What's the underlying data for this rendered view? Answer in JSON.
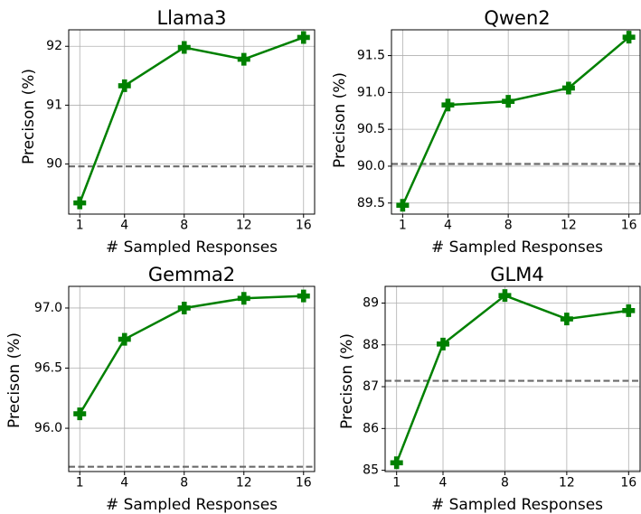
{
  "chart_data": [
    {
      "type": "line",
      "title": "Llama3",
      "xlabel": "# Sampled Responses",
      "ylabel": "Precison (%)",
      "x_tick_labels": [
        "1",
        "4",
        "8",
        "12",
        "16"
      ],
      "y_tick_labels": [
        "90",
        "91",
        "92"
      ],
      "y_ticks": [
        90,
        91,
        92
      ],
      "ylim": [
        89.15,
        92.28
      ],
      "grid": true,
      "line_color": "#008000",
      "baseline_color": "#6b6b6b",
      "series": [
        {
          "x": [
            1,
            4,
            8,
            12,
            16
          ],
          "values": [
            89.34,
            91.33,
            91.98,
            91.78,
            92.15
          ]
        }
      ],
      "baseline": 89.96
    },
    {
      "type": "line",
      "title": "Qwen2",
      "xlabel": "# Sampled Responses",
      "ylabel": "Precison (%)",
      "x_tick_labels": [
        "1",
        "4",
        "8",
        "12",
        "16"
      ],
      "y_tick_labels": [
        "89.5",
        "90.0",
        "90.5",
        "91.0",
        "91.5"
      ],
      "y_ticks": [
        89.5,
        90.0,
        90.5,
        91.0,
        91.5
      ],
      "ylim": [
        89.35,
        91.85
      ],
      "grid": true,
      "line_color": "#008000",
      "baseline_color": "#6b6b6b",
      "series": [
        {
          "x": [
            1,
            4,
            8,
            12,
            16
          ],
          "values": [
            89.47,
            90.83,
            90.88,
            91.06,
            91.75
          ]
        }
      ],
      "baseline": 90.03
    },
    {
      "type": "line",
      "title": "Gemma2",
      "xlabel": "# Sampled Responses",
      "ylabel": "Precison (%)",
      "x_tick_labels": [
        "1",
        "4",
        "8",
        "12",
        "16"
      ],
      "y_tick_labels": [
        "96.0",
        "96.5",
        "97.0"
      ],
      "y_ticks": [
        96.0,
        96.5,
        97.0
      ],
      "ylim": [
        95.64,
        97.18
      ],
      "grid": true,
      "line_color": "#008000",
      "baseline_color": "#6b6b6b",
      "series": [
        {
          "x": [
            1,
            4,
            8,
            12,
            16
          ],
          "values": [
            96.12,
            96.74,
            97.0,
            97.08,
            97.1
          ]
        }
      ],
      "baseline": 95.68
    },
    {
      "type": "line",
      "title": "GLM4",
      "xlabel": "# Sampled Responses",
      "ylabel": "Precison (%)",
      "x_tick_labels": [
        "1",
        "4",
        "8",
        "12",
        "16"
      ],
      "y_tick_labels": [
        "85",
        "86",
        "87",
        "88",
        "89"
      ],
      "y_ticks": [
        85,
        86,
        87,
        88,
        89
      ],
      "ylim": [
        84.97,
        89.4
      ],
      "grid": true,
      "line_color": "#008000",
      "baseline_color": "#6b6b6b",
      "series": [
        {
          "x": [
            1,
            4,
            8,
            12,
            16
          ],
          "values": [
            85.18,
            88.02,
            89.18,
            88.62,
            88.82
          ]
        }
      ],
      "baseline": 87.14
    }
  ]
}
